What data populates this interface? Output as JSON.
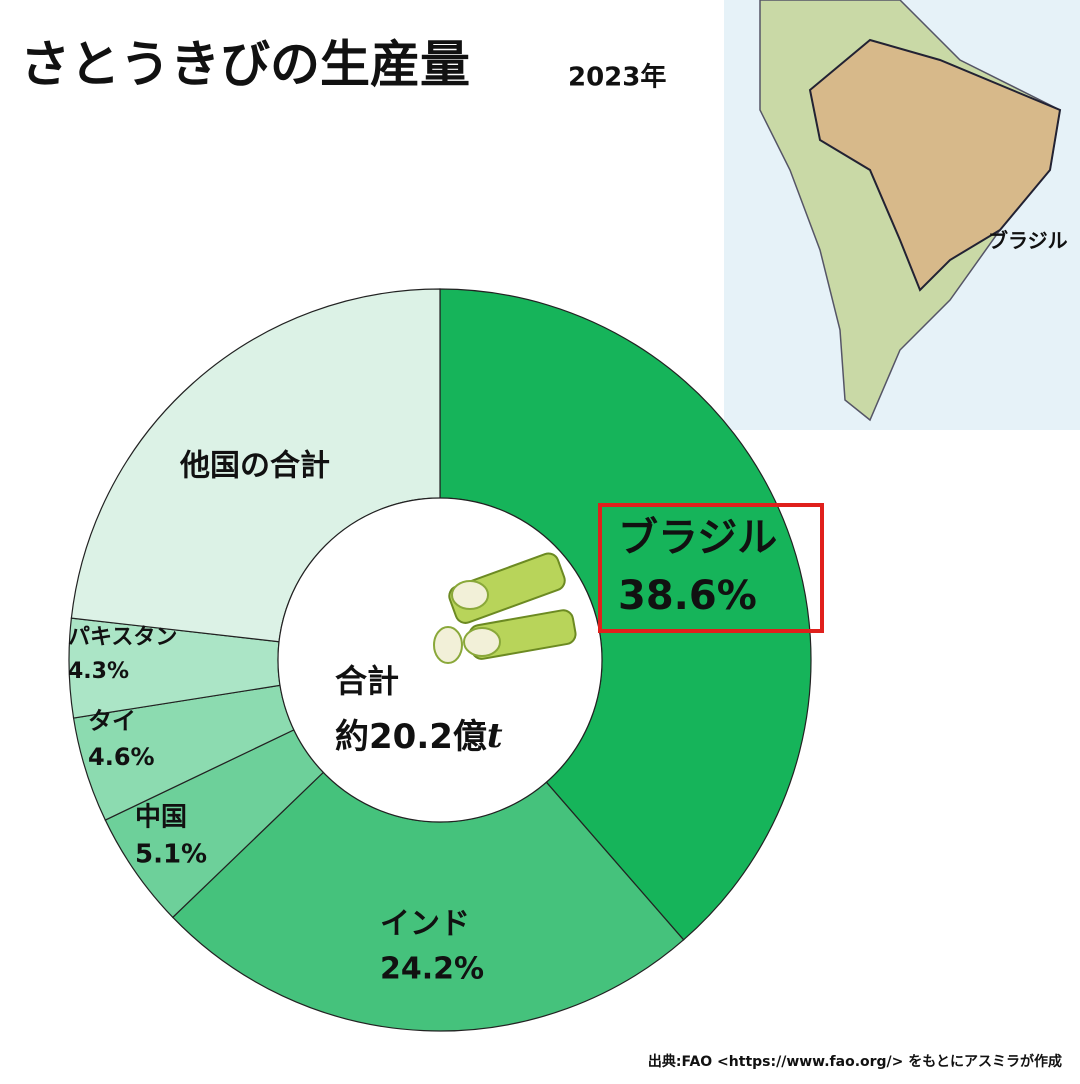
{
  "chart_data": {
    "type": "donut",
    "title": "さとうきびの生産量",
    "subtitle": "2023年",
    "categories": [
      "ブラジル",
      "インド",
      "中国",
      "タイ",
      "パキスタン",
      "他国の合計"
    ],
    "values": [
      38.6,
      24.2,
      5.1,
      4.6,
      4.3,
      23.2
    ],
    "value_labels": [
      "38.6%",
      "24.2%",
      "5.1%",
      "4.6%",
      "4.3%",
      null
    ],
    "colors": [
      "#16b45a",
      "#45c27c",
      "#6dd09a",
      "#8cdbb0",
      "#abe5c6",
      "#dcf2e6"
    ],
    "total_label": "合計",
    "total_value": "約20.2億",
    "total_unit": "t",
    "map_label": "ブラジル",
    "source": "出典:FAO <https://www.fao.org/> をもとにアスミラが作成"
  }
}
